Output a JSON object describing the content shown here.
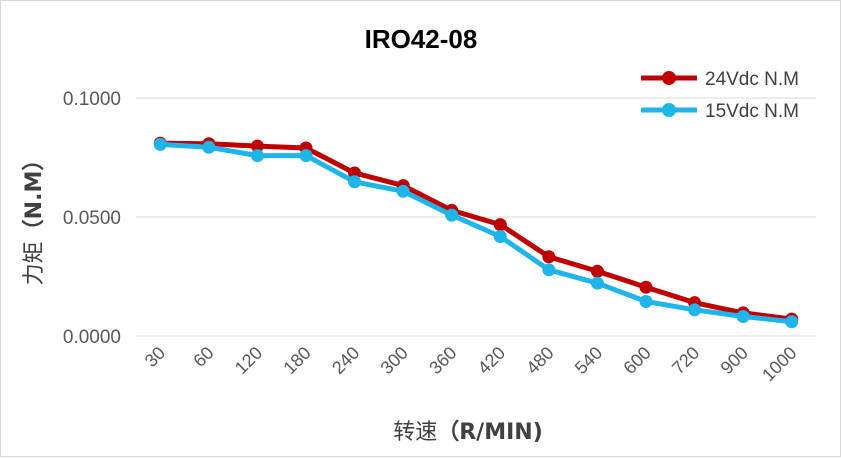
{
  "chart_data": {
    "type": "line",
    "title": "IRO42-08",
    "xlabel_prefix": "转速",
    "xlabel_unit": "（R/MIN)",
    "ylabel_prefix": "力矩",
    "ylabel_unit": "（N.M）",
    "categories": [
      "30",
      "60",
      "120",
      "180",
      "240",
      "300",
      "360",
      "420",
      "480",
      "540",
      "600",
      "720",
      "900",
      "1000"
    ],
    "y_ticks": [
      "0.0000",
      "0.0500",
      "0.1000"
    ],
    "ylim": [
      0,
      0.1
    ],
    "grid": true,
    "legend_position": "top-right",
    "series": [
      {
        "name": "24Vdc N.M",
        "color": "#c00000",
        "values": [
          0.081,
          0.0808,
          0.0798,
          0.079,
          0.0685,
          0.0632,
          0.0528,
          0.0468,
          0.0333,
          0.0272,
          0.0205,
          0.014,
          0.0097,
          0.0071
        ]
      },
      {
        "name": "15Vdc N.M",
        "color": "#1fb5ea",
        "values": [
          0.0805,
          0.0793,
          0.0758,
          0.0758,
          0.0648,
          0.0608,
          0.0508,
          0.0418,
          0.0278,
          0.0222,
          0.0145,
          0.011,
          0.0082,
          0.006
        ]
      }
    ]
  }
}
